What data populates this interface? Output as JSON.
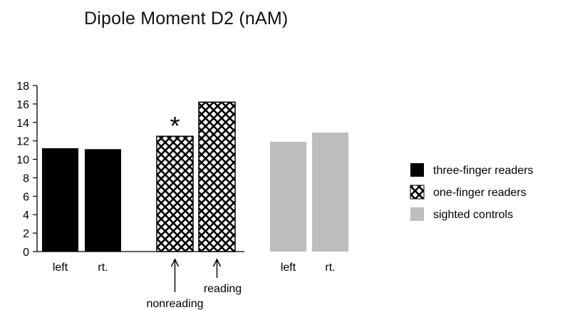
{
  "chart_data": {
    "type": "bar",
    "title": "Dipole Moment D2 (nAM)",
    "xlabel": "",
    "ylabel": "",
    "ylim": [
      0,
      18
    ],
    "yticks": [
      0,
      2,
      4,
      6,
      8,
      10,
      12,
      14,
      16,
      18
    ],
    "series": [
      {
        "name": "three-finger readers",
        "categories": [
          "left",
          "rt."
        ],
        "values": [
          11.2,
          11.1
        ],
        "color": "#000000",
        "pattern": "solid"
      },
      {
        "name": "one-finger readers",
        "categories": [
          "",
          ""
        ],
        "values": [
          12.5,
          16.2
        ],
        "color": "#000000",
        "pattern": "crosshatch"
      },
      {
        "name": "sighted controls",
        "categories": [
          "left",
          "rt."
        ],
        "values": [
          11.9,
          12.9
        ],
        "color": "#bdbdbd",
        "pattern": "solid"
      }
    ],
    "annotations": {
      "significance_marker": "*",
      "arrow_labels": [
        "nonreading",
        "reading"
      ]
    },
    "legend": {
      "placement": "right",
      "items": [
        {
          "label": "three-finger readers",
          "icon": "solid-black-swatch"
        },
        {
          "label": "one-finger readers",
          "icon": "crosshatch-swatch"
        },
        {
          "label": "sighted controls",
          "icon": "gray-swatch"
        }
      ]
    },
    "grid": false
  }
}
